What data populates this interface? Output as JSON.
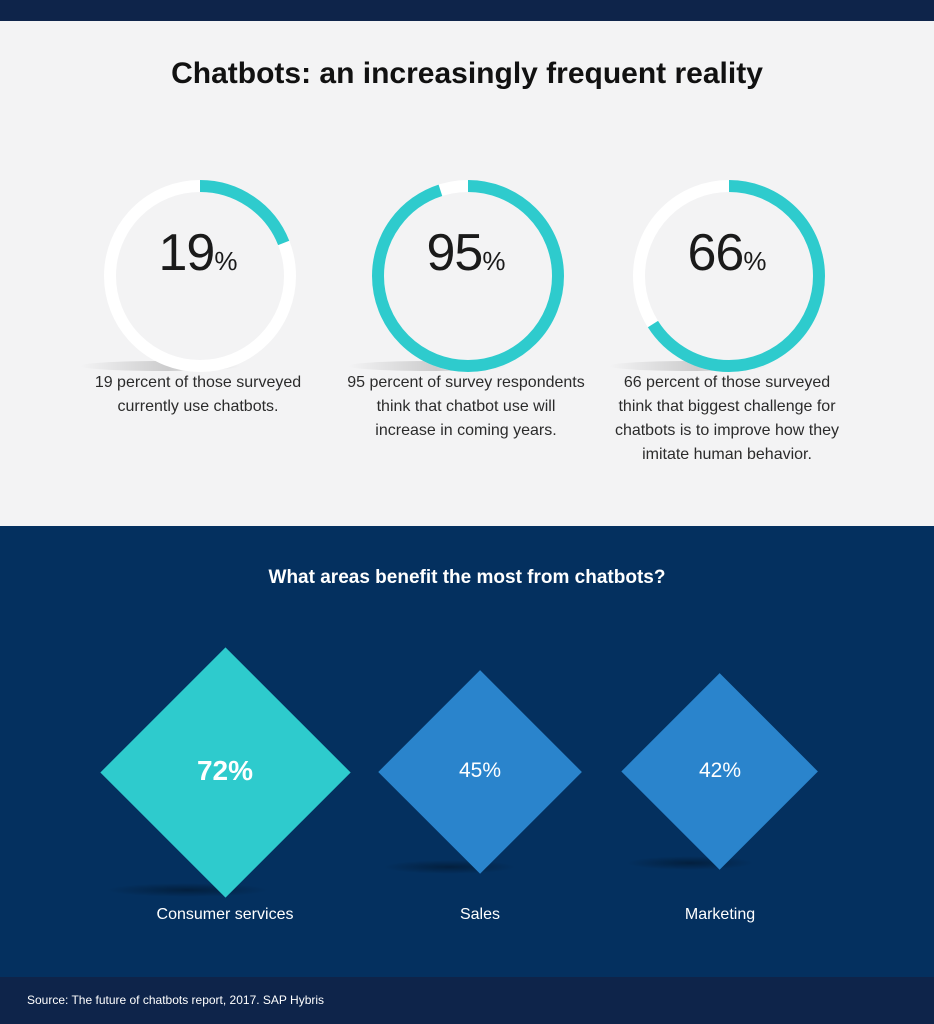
{
  "title": "Chatbots: an increasingly frequent reality",
  "subtitle": "What areas benefit the most from chatbots?",
  "source": "Source: The future of chatbots report, 2017. SAP Hybris",
  "colors": {
    "teal": "#2ecbcd",
    "blue": "#2a84cc",
    "navy": "#04305f",
    "dark_navy": "#0e244a",
    "light_bg": "#f3f3f4"
  },
  "chart_data": [
    {
      "type": "pie",
      "series": [
        {
          "value": 19,
          "value_label": "19",
          "unit": "%",
          "description": "19 percent of those surveyed currently use chatbots."
        },
        {
          "value": 95,
          "value_label": "95",
          "unit": "%",
          "description": "95 percent of survey respondents think that chatbot use will increase in coming years."
        },
        {
          "value": 66,
          "value_label": "66",
          "unit": "%",
          "description": "66 percent of those surveyed think that biggest challenge for chatbots is to improve how they imitate human behavior."
        }
      ]
    },
    {
      "type": "bar",
      "title": "What areas benefit the most from chatbots?",
      "categories": [
        "Consumer services",
        "Sales",
        "Marketing"
      ],
      "values": [
        72,
        45,
        42
      ],
      "value_labels": [
        "72%",
        "45%",
        "42%"
      ]
    }
  ]
}
